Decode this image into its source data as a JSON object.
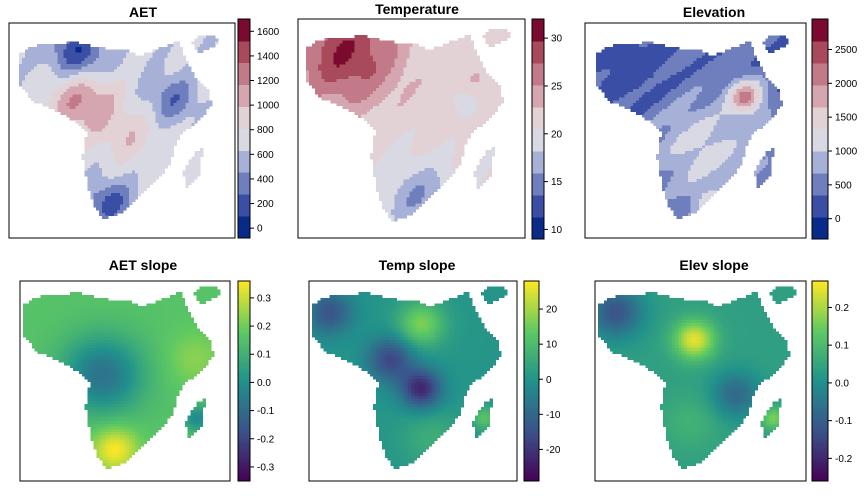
{
  "chart_data": [
    {
      "type": "heatmap",
      "title": "AET",
      "palette": "blue-white-red",
      "colorbar": {
        "range": [
          -80,
          1700
        ],
        "ticks": [
          0,
          200,
          400,
          600,
          800,
          1000,
          1200,
          1400,
          1600
        ],
        "tick_labels": [
          "0",
          "200",
          "400",
          "600",
          "800",
          "1000",
          "1200",
          "1400",
          "1600"
        ]
      },
      "pattern": "aet"
    },
    {
      "type": "heatmap",
      "title": "Temperature",
      "palette": "blue-white-red",
      "colorbar": {
        "range": [
          9,
          32
        ],
        "ticks": [
          10,
          15,
          20,
          25,
          30
        ],
        "tick_labels": [
          "10",
          "15",
          "20",
          "25",
          "30"
        ]
      },
      "pattern": "temperature"
    },
    {
      "type": "heatmap",
      "title": "Elevation",
      "palette": "blue-white-red",
      "colorbar": {
        "range": [
          -300,
          2950
        ],
        "ticks": [
          0,
          500,
          1000,
          1500,
          2000,
          2500
        ],
        "tick_labels": [
          "0",
          "500",
          "1000",
          "1500",
          "2000",
          "2500"
        ]
      },
      "pattern": "elevation"
    },
    {
      "type": "heatmap",
      "title": "AET slope",
      "palette": "viridis",
      "colorbar": {
        "range": [
          -0.35,
          0.36
        ],
        "ticks": [
          -0.3,
          -0.2,
          -0.1,
          0.0,
          0.1,
          0.2,
          0.3
        ],
        "tick_labels": [
          "-0.3",
          "-0.2",
          "-0.1",
          "0.0",
          "0.1",
          "0.2",
          "0.3"
        ]
      },
      "pattern": "aet_slope"
    },
    {
      "type": "heatmap",
      "title": "Temp slope",
      "palette": "viridis",
      "colorbar": {
        "range": [
          -29,
          28
        ],
        "ticks": [
          -20,
          -10,
          0,
          10,
          20
        ],
        "tick_labels": [
          "-20",
          "-10",
          "0",
          "10",
          "20"
        ]
      },
      "pattern": "temp_slope"
    },
    {
      "type": "heatmap",
      "title": "Elev slope",
      "palette": "viridis",
      "colorbar": {
        "range": [
          -0.26,
          0.27
        ],
        "ticks": [
          -0.2,
          -0.1,
          0.0,
          0.1,
          0.2
        ],
        "tick_labels": [
          "-0.2",
          "-0.1",
          "0.0",
          "0.1",
          "0.2"
        ]
      },
      "pattern": "elev_slope"
    }
  ],
  "palettes": {
    "blue-white-red": [
      "#0a2a8a",
      "#3a4ea6",
      "#6f7fbe",
      "#a7b0d6",
      "#d9d9e4",
      "#e2d2d6",
      "#d6a6b0",
      "#c27a88",
      "#a84a5c",
      "#7a0a2e"
    ],
    "viridis": [
      "#440154",
      "#3b528b",
      "#21918c",
      "#5ec962",
      "#fde725"
    ]
  }
}
